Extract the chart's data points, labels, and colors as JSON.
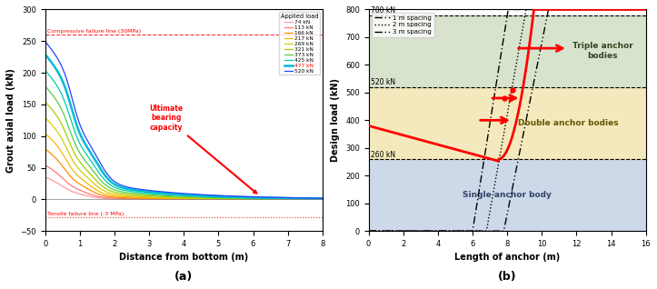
{
  "panel_a": {
    "title": "(a)",
    "xlabel": "Distance from bottom (m)",
    "ylabel": "Grout axial load (kN)",
    "xlim": [
      0,
      8
    ],
    "ylim": [
      -50,
      300
    ],
    "compressive_line": 260,
    "tensile_line": -28,
    "compressive_label": "Compressive failure line (30MPa)",
    "tensile_label": "Tensile failure line (-3 MPa)",
    "loads": [
      74,
      113,
      166,
      217,
      269,
      321,
      373,
      425,
      477,
      520
    ],
    "colors": [
      "#ff9999",
      "#ff7777",
      "#ff8c00",
      "#ffb300",
      "#d4cc00",
      "#aacc00",
      "#55cc44",
      "#00ccaa",
      "#00bbd4",
      "#2244ff"
    ],
    "highlight_load": 477,
    "annotation_text": "Ultimate\nbearing\ncapacity",
    "legend_title": "Applied load"
  },
  "panel_b": {
    "title": "(b)",
    "xlabel": "Length of anchor (m)",
    "ylabel": "Design load (kN)",
    "xlim": [
      0,
      16
    ],
    "ylim": [
      0,
      800
    ],
    "hlines": [
      260,
      520,
      780
    ],
    "hline_labels": [
      "260 kN",
      "520 kN",
      "780 kN"
    ],
    "single_color": "#b8c8e0",
    "double_color": "#f0e0a0",
    "triple_color": "#c8d8b8",
    "single_label": "Single anchor body",
    "double_label": "Double anchor bodies",
    "triple_label": "Triple anchor\nbodies",
    "spacing_labels": [
      "1 m spacing",
      "2 m spacing",
      "3 m spacing"
    ]
  }
}
